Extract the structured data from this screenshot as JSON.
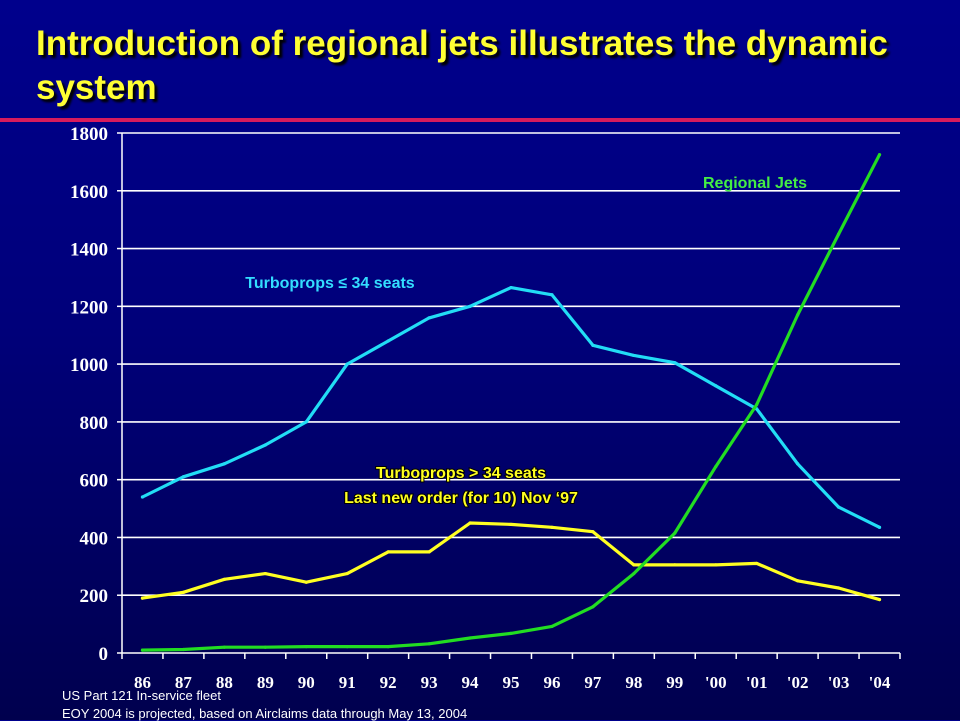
{
  "slide": {
    "title": "Introduction of regional jets illustrates the dynamic system",
    "footnotes": [
      "US Part 121 In-service fleet",
      "EOY 2004 is projected, based on Airclaims data through May 13, 2004"
    ]
  },
  "colors": {
    "title": "#ffff33",
    "rule": "#d81b5c",
    "grid": "#ffffff",
    "turboprops_small": "#22ddf5",
    "turboprops_large": "#ffff22",
    "regional_jets": "#22dd22",
    "label_regional": "#44ee44",
    "label_small": "#33ddff",
    "label_large": "#ffff22"
  },
  "chart_data": {
    "type": "line",
    "x": [
      "86",
      "87",
      "88",
      "89",
      "90",
      "91",
      "92",
      "93",
      "94",
      "95",
      "96",
      "97",
      "98",
      "99",
      "'00",
      "'01",
      "'02",
      "'03",
      "'04"
    ],
    "ylim": [
      0,
      1800
    ],
    "yticks": [
      0,
      200,
      400,
      600,
      800,
      1000,
      1200,
      1400,
      1600,
      1800
    ],
    "grid": true,
    "series": [
      {
        "key": "turboprops_small",
        "name": "Turboprops ≤ 34 seats",
        "values": [
          540,
          610,
          655,
          720,
          800,
          1000,
          1080,
          1160,
          1200,
          1265,
          1240,
          1065,
          1030,
          1005,
          925,
          845,
          655,
          505,
          435
        ]
      },
      {
        "key": "turboprops_large",
        "name": "Turboprops > 34 seats",
        "note": "Last new order (for 10) Nov ‘97",
        "values": [
          190,
          210,
          255,
          275,
          245,
          275,
          350,
          350,
          450,
          445,
          435,
          420,
          305,
          305,
          305,
          310,
          250,
          225,
          185
        ]
      },
      {
        "key": "regional_jets",
        "name": "Regional Jets",
        "values": [
          10,
          12,
          20,
          20,
          22,
          22,
          22,
          32,
          52,
          68,
          92,
          160,
          275,
          415,
          645,
          860,
          1170,
          1450,
          1725
        ]
      }
    ]
  }
}
